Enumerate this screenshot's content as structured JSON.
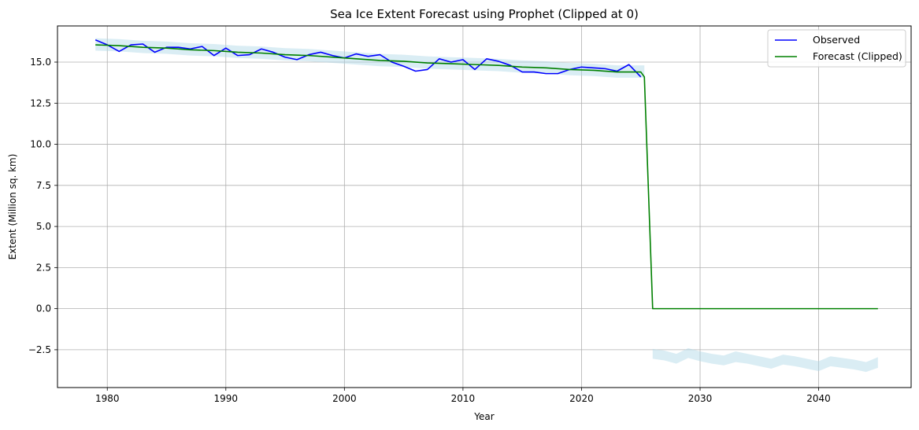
{
  "chart_data": {
    "type": "line",
    "title": "Sea Ice Extent Forecast using Prophet (Clipped at 0)",
    "xlabel": "Year",
    "ylabel": "Extent (Million sq. km)",
    "xlim": [
      1975.8,
      2047.8
    ],
    "ylim": [
      -4.8,
      17.2
    ],
    "xticks": [
      1980,
      1990,
      2000,
      2010,
      2020,
      2030,
      2040
    ],
    "yticks": [
      -2.5,
      0.0,
      2.5,
      5.0,
      7.5,
      10.0,
      12.5,
      15.0
    ],
    "ytick_labels": [
      "−2.5",
      "0.0",
      "2.5",
      "5.0",
      "7.5",
      "10.0",
      "12.5",
      "15.0"
    ],
    "grid": true,
    "legend_position": "top-right",
    "colors": {
      "observed": "#0000ff",
      "forecast": "#008000",
      "band": "#add8e6"
    },
    "series": [
      {
        "name": "Observed",
        "x": [
          1979,
          1980,
          1981,
          1982,
          1983,
          1984,
          1985,
          1986,
          1987,
          1988,
          1989,
          1990,
          1991,
          1992,
          1993,
          1994,
          1995,
          1996,
          1997,
          1998,
          1999,
          2000,
          2001,
          2002,
          2003,
          2004,
          2005,
          2006,
          2007,
          2008,
          2009,
          2010,
          2011,
          2012,
          2013,
          2014,
          2015,
          2016,
          2017,
          2018,
          2019,
          2020,
          2021,
          2022,
          2023,
          2024,
          2025
        ],
        "values": [
          16.35,
          16.05,
          15.65,
          16.05,
          16.1,
          15.6,
          15.9,
          15.9,
          15.8,
          15.95,
          15.4,
          15.85,
          15.4,
          15.45,
          15.8,
          15.6,
          15.3,
          15.15,
          15.45,
          15.6,
          15.4,
          15.25,
          15.5,
          15.35,
          15.45,
          15.0,
          14.75,
          14.45,
          14.55,
          15.2,
          15.0,
          15.15,
          14.55,
          15.2,
          15.05,
          14.8,
          14.4,
          14.4,
          14.3,
          14.3,
          14.55,
          14.7,
          14.65,
          14.6,
          14.45,
          14.85,
          14.1
        ]
      },
      {
        "name": "Forecast (Clipped)",
        "x": [
          1979,
          1981,
          1983,
          1985,
          1987,
          1989,
          1991,
          1993,
          1995,
          1997,
          1999,
          2001,
          2003,
          2005,
          2007,
          2009,
          2011,
          2013,
          2015,
          2017,
          2019,
          2021,
          2023,
          2025,
          2025.3,
          2026,
          2028,
          2030,
          2032,
          2034,
          2036,
          2038,
          2040,
          2042,
          2044,
          2045
        ],
        "values": [
          16.05,
          16.0,
          15.9,
          15.85,
          15.75,
          15.7,
          15.6,
          15.55,
          15.45,
          15.4,
          15.3,
          15.2,
          15.1,
          15.05,
          14.95,
          14.9,
          14.85,
          14.8,
          14.7,
          14.65,
          14.55,
          14.5,
          14.4,
          14.4,
          14.1,
          0.0,
          0.0,
          0.0,
          0.0,
          0.0,
          0.0,
          0.0,
          0.0,
          0.0,
          0.0,
          0.0
        ]
      }
    ],
    "uncertainty_band": {
      "x": [
        1979,
        1981,
        1983,
        1985,
        1987,
        1989,
        1991,
        1993,
        1995,
        1997,
        1999,
        2001,
        2003,
        2005,
        2007,
        2009,
        2011,
        2013,
        2015,
        2017,
        2019,
        2021,
        2023,
        2025,
        2025.3
      ],
      "lower": [
        15.7,
        15.65,
        15.55,
        15.5,
        15.4,
        15.35,
        15.25,
        15.2,
        15.1,
        15.05,
        14.95,
        14.85,
        14.75,
        14.7,
        14.6,
        14.55,
        14.5,
        14.45,
        14.35,
        14.3,
        14.2,
        14.15,
        14.05,
        14.05,
        14.05
      ],
      "upper": [
        16.45,
        16.4,
        16.3,
        16.25,
        16.15,
        16.1,
        16.0,
        15.95,
        15.85,
        15.8,
        15.7,
        15.6,
        15.5,
        15.45,
        15.35,
        15.3,
        15.25,
        15.2,
        15.1,
        15.05,
        14.95,
        14.9,
        14.8,
        14.8,
        14.8
      ]
    },
    "uncertainty_band_future": {
      "x": [
        2026,
        2027,
        2028,
        2029,
        2030,
        2031,
        2032,
        2033,
        2034,
        2035,
        2036,
        2037,
        2038,
        2039,
        2040,
        2041,
        2042,
        2043,
        2044,
        2045
      ],
      "lower": [
        -3.05,
        -3.15,
        -3.35,
        -3.0,
        -3.2,
        -3.35,
        -3.45,
        -3.25,
        -3.35,
        -3.5,
        -3.65,
        -3.4,
        -3.5,
        -3.65,
        -3.8,
        -3.5,
        -3.6,
        -3.7,
        -3.85,
        -3.6
      ],
      "upper": [
        -2.45,
        -2.55,
        -2.75,
        -2.4,
        -2.6,
        -2.75,
        -2.85,
        -2.6,
        -2.75,
        -2.9,
        -3.05,
        -2.8,
        -2.9,
        -3.05,
        -3.2,
        -2.9,
        -3.0,
        -3.1,
        -3.25,
        -2.95
      ]
    }
  }
}
